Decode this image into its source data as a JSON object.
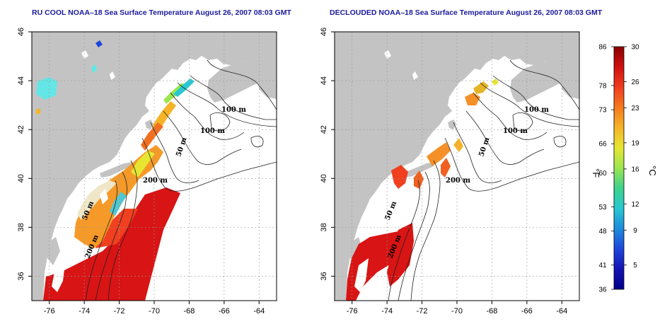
{
  "panels": [
    {
      "id": "left",
      "title": "RU COOL NOAA–18 Sea Surface Temperature August 26, 2007 08:03 GMT"
    },
    {
      "id": "right",
      "title": "DECLOUDED NOAA–18 Sea Surface Temperature August 26, 2007 08:03 GMT"
    }
  ],
  "map": {
    "lon_ticks": [
      "-76",
      "-74",
      "-72",
      "-70",
      "-68",
      "-66",
      "-64"
    ],
    "lat_ticks": [
      "36",
      "38",
      "40",
      "42",
      "44",
      "46"
    ],
    "contour_labels": [
      "100 m",
      "100 m",
      "50 m",
      "200 m",
      "50 m",
      "200 m"
    ],
    "land_color": "#c3c3c3",
    "ocean_color": "#ffffff",
    "contour_color": "#222222"
  },
  "colorbar": {
    "fahrenheit_labels": [
      "86",
      "78",
      "73",
      "66",
      "60",
      "53",
      "48",
      "41",
      "36"
    ],
    "celsius_labels": [
      "30",
      "26",
      "23",
      "19",
      "16",
      "12",
      "9",
      "5"
    ],
    "fahrenheit_unit": "°F",
    "celsius_unit": "°C",
    "colors": [
      "#8b0000",
      "#d01010",
      "#f03c1e",
      "#f57a1e",
      "#f5b428",
      "#e6e632",
      "#9be650",
      "#3ed28c",
      "#28c8d2",
      "#1e8cdc",
      "#1e46dc",
      "#1414b4",
      "#00008b"
    ]
  }
}
